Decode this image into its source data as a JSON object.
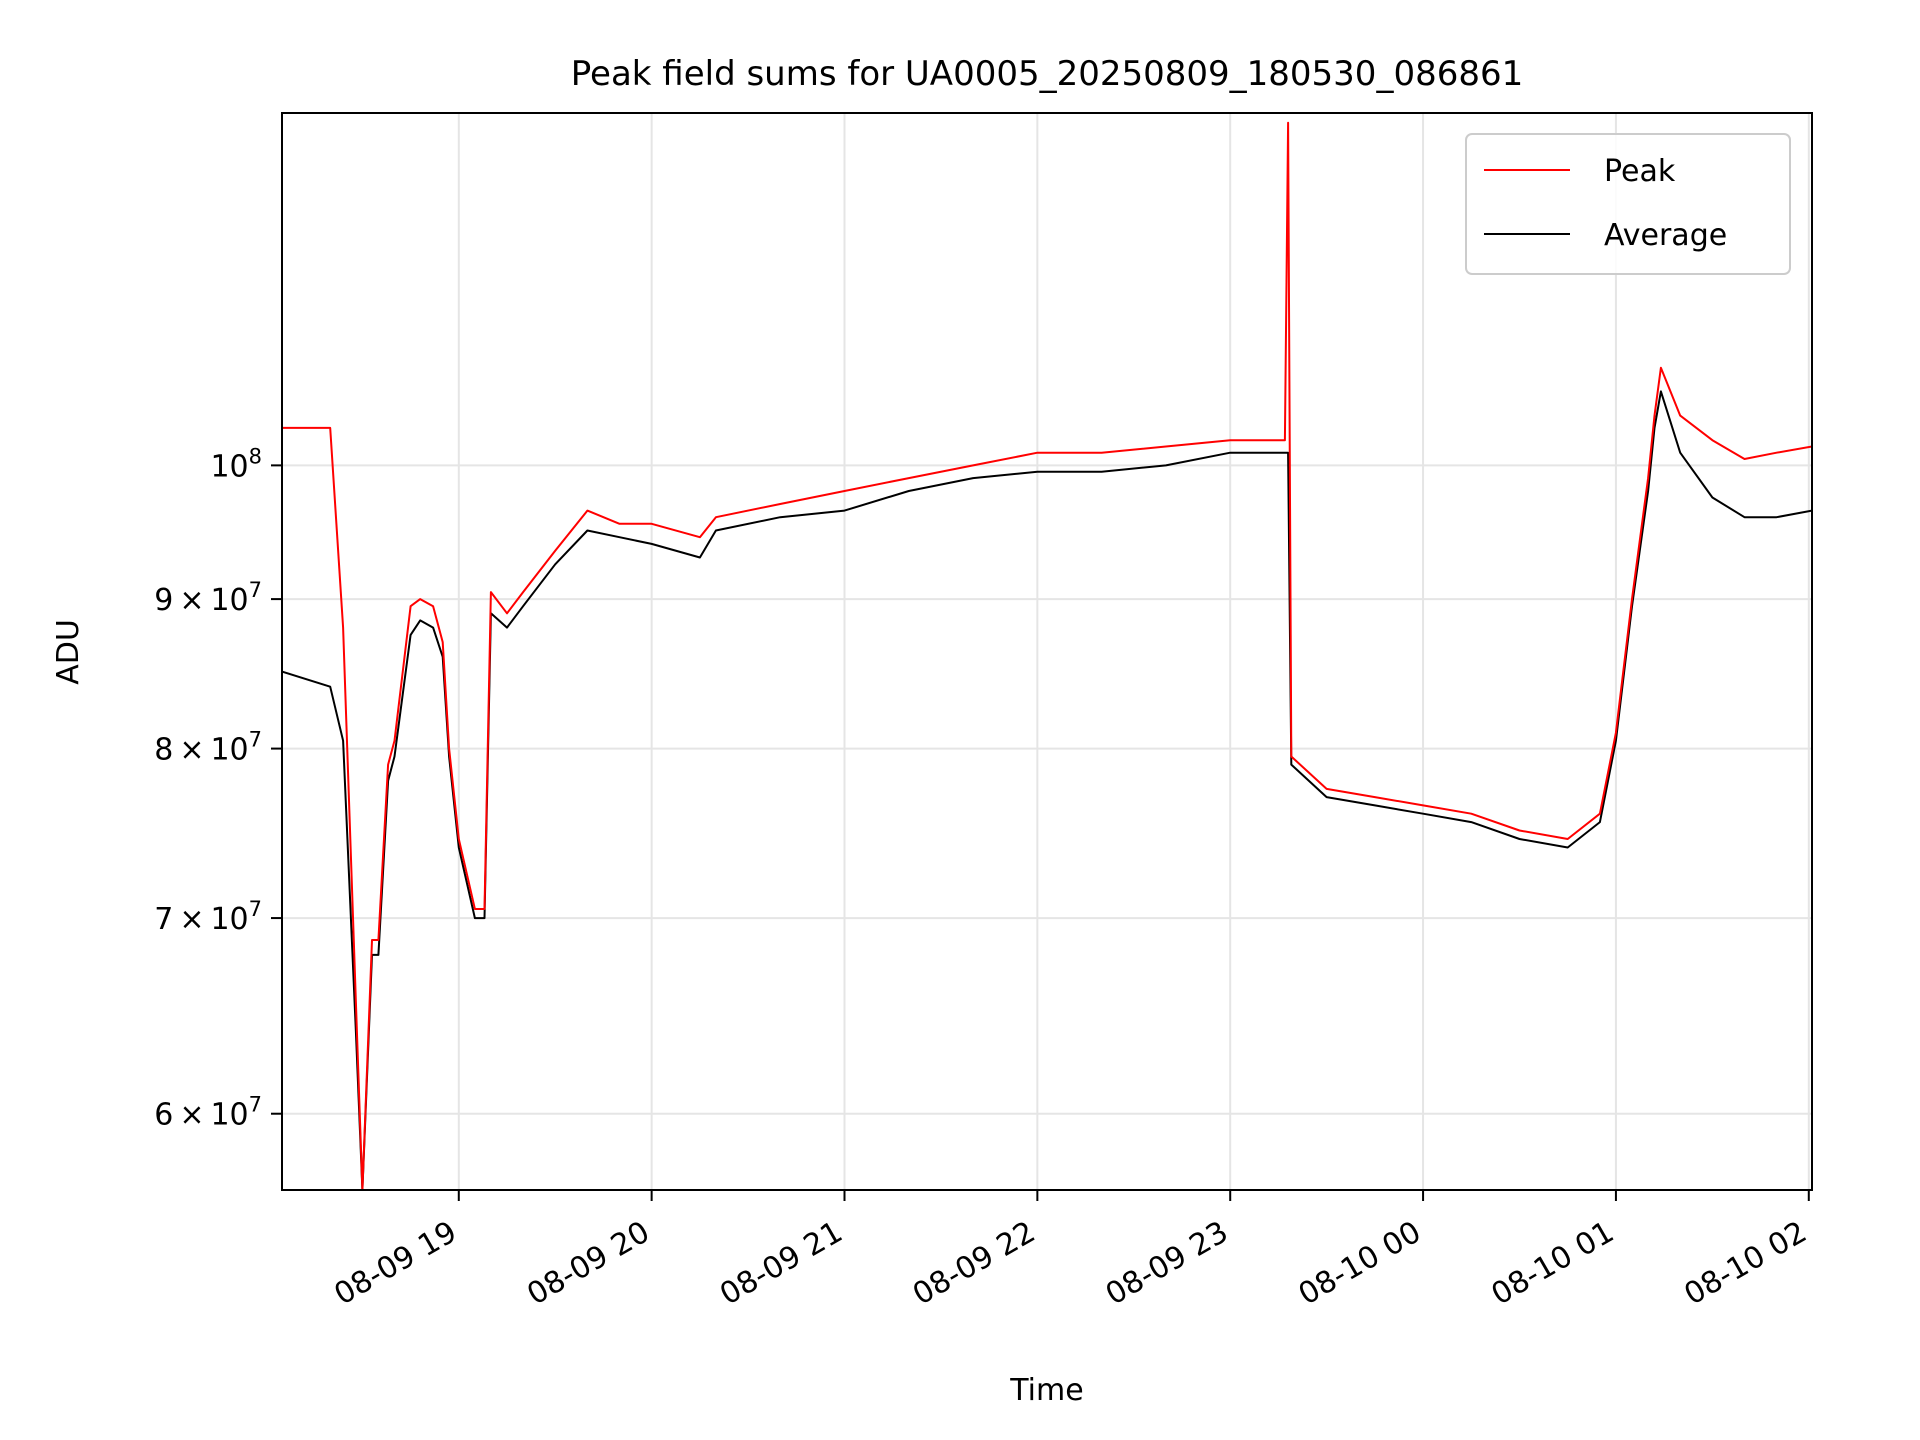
{
  "chart_data": {
    "type": "line",
    "title": "Peak field sums for UA0005_20250809_180530_086861",
    "xlabel": "Time",
    "ylabel": "ADU",
    "y_scale": "log",
    "grid": true,
    "legend_position": "top-right",
    "xlim": [
      "2025-08-09 18:05",
      "2025-08-10 02:01"
    ],
    "ylim": [
      56500000,
      132000000
    ],
    "x_ticks": [
      {
        "value": "2025-08-09 19:00",
        "label": "08-09 19"
      },
      {
        "value": "2025-08-09 20:00",
        "label": "08-09 20"
      },
      {
        "value": "2025-08-09 21:00",
        "label": "08-09 21"
      },
      {
        "value": "2025-08-09 22:00",
        "label": "08-09 22"
      },
      {
        "value": "2025-08-09 23:00",
        "label": "08-09 23"
      },
      {
        "value": "2025-08-10 00:00",
        "label": "08-10 00"
      },
      {
        "value": "2025-08-10 01:00",
        "label": "08-10 01"
      },
      {
        "value": "2025-08-10 02:00",
        "label": "08-10 02"
      }
    ],
    "y_ticks": [
      {
        "value": 60000000,
        "mantissa": "6",
        "exponent": "7"
      },
      {
        "value": 70000000,
        "mantissa": "7",
        "exponent": "7"
      },
      {
        "value": 80000000,
        "mantissa": "8",
        "exponent": "7"
      },
      {
        "value": 90000000,
        "mantissa": "9",
        "exponent": "7"
      },
      {
        "value": 100000000,
        "mantissa": "",
        "exponent": "8"
      }
    ],
    "series": [
      {
        "name": "Peak",
        "color": "#ff0000",
        "x": [
          "2025-08-09 18:05",
          "2025-08-09 18:20",
          "2025-08-09 18:24",
          "2025-08-09 18:28",
          "2025-08-09 18:30",
          "2025-08-09 18:33",
          "2025-08-09 18:35",
          "2025-08-09 18:38",
          "2025-08-09 18:40",
          "2025-08-09 18:45",
          "2025-08-09 18:48",
          "2025-08-09 18:52",
          "2025-08-09 18:55",
          "2025-08-09 18:57",
          "2025-08-09 19:00",
          "2025-08-09 19:05",
          "2025-08-09 19:08",
          "2025-08-09 19:10",
          "2025-08-09 19:15",
          "2025-08-09 19:20",
          "2025-08-09 19:30",
          "2025-08-09 19:40",
          "2025-08-09 19:50",
          "2025-08-09 20:00",
          "2025-08-09 20:15",
          "2025-08-09 20:20",
          "2025-08-09 20:40",
          "2025-08-09 21:00",
          "2025-08-09 21:20",
          "2025-08-09 21:40",
          "2025-08-09 22:00",
          "2025-08-09 22:20",
          "2025-08-09 22:40",
          "2025-08-09 23:00",
          "2025-08-09 23:17",
          "2025-08-09 23:18",
          "2025-08-09 23:19",
          "2025-08-09 23:30",
          "2025-08-09 23:45",
          "2025-08-10 00:00",
          "2025-08-10 00:15",
          "2025-08-10 00:30",
          "2025-08-10 00:45",
          "2025-08-10 00:55",
          "2025-08-10 01:00",
          "2025-08-10 01:05",
          "2025-08-10 01:10",
          "2025-08-10 01:12",
          "2025-08-10 01:14",
          "2025-08-10 01:20",
          "2025-08-10 01:30",
          "2025-08-10 01:40",
          "2025-08-10 01:50",
          "2025-08-10 02:01"
        ],
        "y": [
          103000000,
          103000000,
          88000000,
          65500000,
          56500000,
          68800000,
          68800000,
          79000000,
          80500000,
          89500000,
          90000000,
          89500000,
          87000000,
          80000000,
          74500000,
          70500000,
          70500000,
          90500000,
          89000000,
          90500000,
          93500000,
          96500000,
          95500000,
          95500000,
          94500000,
          96000000,
          97000000,
          98000000,
          99000000,
          100000000,
          101000000,
          101000000,
          101500000,
          102000000,
          102000000,
          131000000,
          79500000,
          77500000,
          77000000,
          76500000,
          76000000,
          75000000,
          74500000,
          76000000,
          81000000,
          90000000,
          99000000,
          104000000,
          108000000,
          104000000,
          102000000,
          100500000,
          101000000,
          101500000
        ]
      },
      {
        "name": "Average",
        "color": "#000000",
        "x": [
          "2025-08-09 18:05",
          "2025-08-09 18:20",
          "2025-08-09 18:24",
          "2025-08-09 18:28",
          "2025-08-09 18:30",
          "2025-08-09 18:33",
          "2025-08-09 18:35",
          "2025-08-09 18:38",
          "2025-08-09 18:40",
          "2025-08-09 18:45",
          "2025-08-09 18:48",
          "2025-08-09 18:52",
          "2025-08-09 18:55",
          "2025-08-09 18:57",
          "2025-08-09 19:00",
          "2025-08-09 19:05",
          "2025-08-09 19:08",
          "2025-08-09 19:10",
          "2025-08-09 19:15",
          "2025-08-09 19:20",
          "2025-08-09 19:30",
          "2025-08-09 19:40",
          "2025-08-09 19:50",
          "2025-08-09 20:00",
          "2025-08-09 20:15",
          "2025-08-09 20:20",
          "2025-08-09 20:40",
          "2025-08-09 21:00",
          "2025-08-09 21:20",
          "2025-08-09 21:40",
          "2025-08-09 22:00",
          "2025-08-09 22:20",
          "2025-08-09 22:40",
          "2025-08-09 23:00",
          "2025-08-09 23:17",
          "2025-08-09 23:18",
          "2025-08-09 23:19",
          "2025-08-09 23:30",
          "2025-08-09 23:45",
          "2025-08-10 00:00",
          "2025-08-10 00:15",
          "2025-08-10 00:30",
          "2025-08-10 00:45",
          "2025-08-10 00:55",
          "2025-08-10 01:00",
          "2025-08-10 01:05",
          "2025-08-10 01:10",
          "2025-08-10 01:12",
          "2025-08-10 01:14",
          "2025-08-10 01:20",
          "2025-08-10 01:30",
          "2025-08-10 01:40",
          "2025-08-10 01:50",
          "2025-08-10 02:01"
        ],
        "y": [
          85000000,
          84000000,
          80500000,
          64000000,
          56500000,
          68000000,
          68000000,
          78000000,
          79500000,
          87500000,
          88500000,
          88000000,
          86000000,
          79500000,
          74000000,
          70000000,
          70000000,
          89000000,
          88000000,
          89500000,
          92500000,
          95000000,
          94500000,
          94000000,
          93000000,
          95000000,
          96000000,
          96500000,
          98000000,
          99000000,
          99500000,
          99500000,
          100000000,
          101000000,
          101000000,
          101000000,
          79000000,
          77000000,
          76500000,
          76000000,
          75500000,
          74500000,
          74000000,
          75500000,
          80500000,
          89500000,
          98000000,
          103000000,
          106000000,
          101000000,
          97500000,
          96000000,
          96000000,
          96500000
        ]
      }
    ]
  }
}
